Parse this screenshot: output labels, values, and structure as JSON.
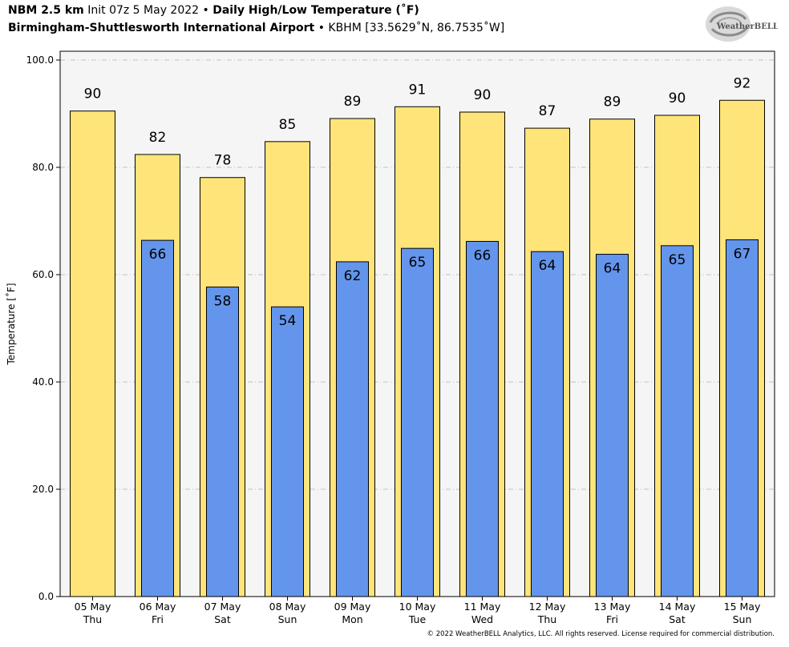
{
  "header": {
    "model": "NBM 2.5 km",
    "init": "Init 07z 5 May 2022",
    "bullet": "•",
    "product": "Daily High/Low Temperature (˚F)",
    "station": "Birmingham-Shuttlesworth International Airport",
    "station_info": "KBHM [33.5629˚N, 86.7535˚W]"
  },
  "logo": {
    "text": "WeatherBELL",
    "icon": "weatherbell-logo-swirl"
  },
  "footer": {
    "copyright": "© 2022 WeatherBELL Analytics, LLC. All rights reserved. License required for commercial distribution."
  },
  "colors": {
    "high_bar": "#FFE479",
    "low_bar": "#6495ED",
    "plot_background": "#F5F5F5",
    "grid": "#B0B0B0"
  },
  "chart_data": {
    "type": "bar",
    "ylabel": "Temperature [˚F]",
    "ylim": [
      0,
      100
    ],
    "yticks": [
      "0.0",
      "20.0",
      "40.0",
      "60.0",
      "80.0",
      "100.0"
    ],
    "ytick_values": [
      0,
      20,
      40,
      60,
      80,
      100
    ],
    "grid": true,
    "categories": [
      {
        "date": "05 May",
        "day": "Thu"
      },
      {
        "date": "06 May",
        "day": "Fri"
      },
      {
        "date": "07 May",
        "day": "Sat"
      },
      {
        "date": "08 May",
        "day": "Sun"
      },
      {
        "date": "09 May",
        "day": "Mon"
      },
      {
        "date": "10 May",
        "day": "Tue"
      },
      {
        "date": "11 May",
        "day": "Wed"
      },
      {
        "date": "12 May",
        "day": "Thu"
      },
      {
        "date": "13 May",
        "day": "Fri"
      },
      {
        "date": "14 May",
        "day": "Sat"
      },
      {
        "date": "15 May",
        "day": "Sun"
      }
    ],
    "high": {
      "values": [
        90.5,
        82.4,
        78.1,
        84.8,
        89.1,
        91.3,
        90.3,
        87.3,
        89.0,
        89.7,
        92.5
      ],
      "labels": [
        "90",
        "82",
        "78",
        "85",
        "89",
        "91",
        "90",
        "87",
        "89",
        "90",
        "92"
      ]
    },
    "low": {
      "values": [
        null,
        66.4,
        57.7,
        54.0,
        62.4,
        64.9,
        66.2,
        64.3,
        63.8,
        65.4,
        66.5
      ],
      "labels": [
        null,
        "66",
        "58",
        "54",
        "62",
        "65",
        "66",
        "64",
        "64",
        "65",
        "67"
      ]
    }
  }
}
